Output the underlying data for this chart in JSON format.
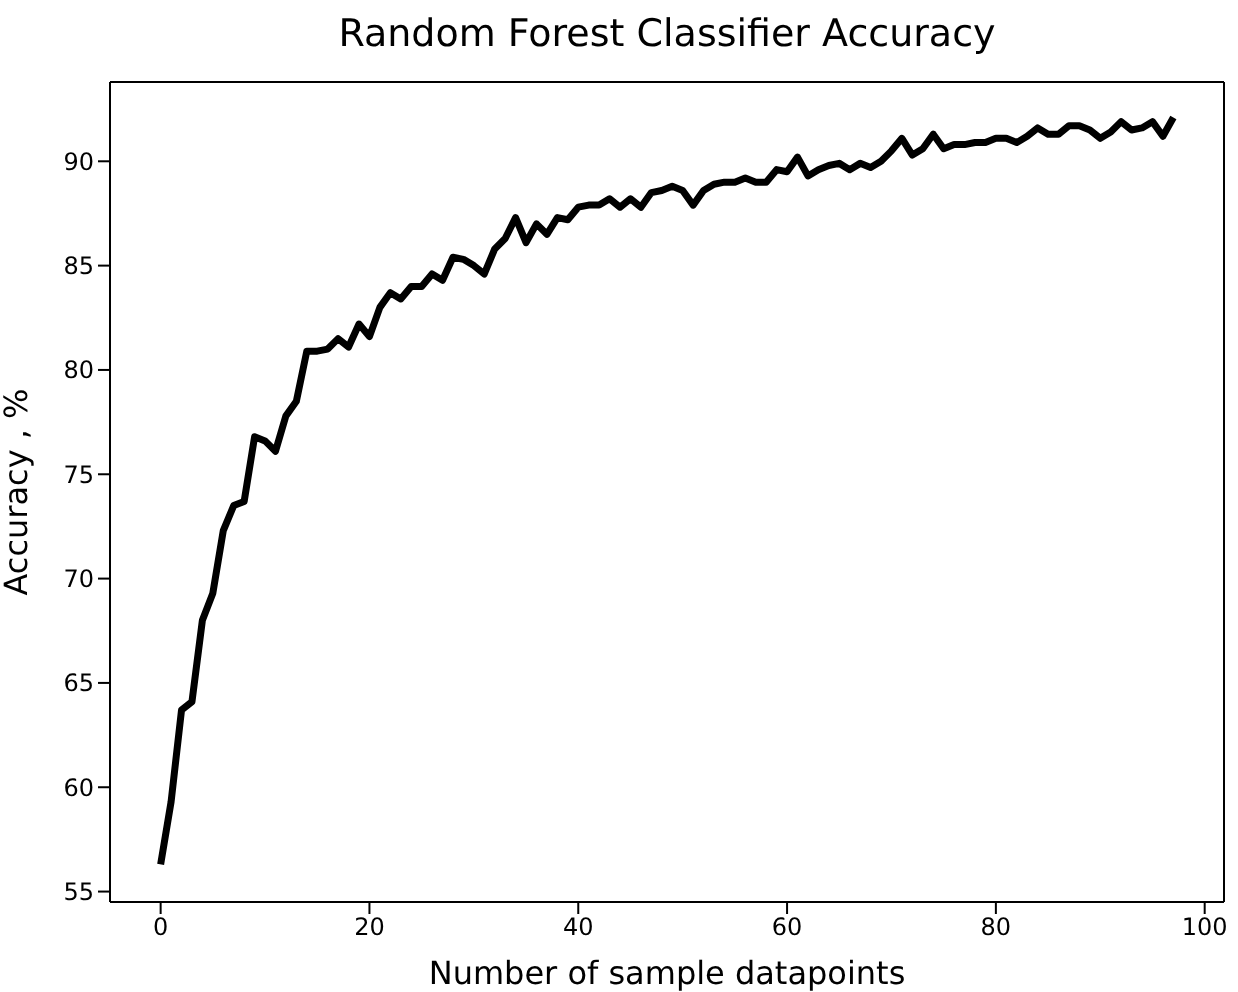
{
  "chart_data": {
    "type": "line",
    "title": "Random Forest Classifier Accuracy",
    "xlabel": "Number of sample datapoints",
    "ylabel": "Accuracy , %",
    "x": [
      0,
      1,
      2,
      3,
      4,
      5,
      6,
      7,
      8,
      9,
      10,
      11,
      12,
      13,
      14,
      15,
      16,
      17,
      18,
      19,
      20,
      21,
      22,
      23,
      24,
      25,
      26,
      27,
      28,
      29,
      30,
      31,
      32,
      33,
      34,
      35,
      36,
      37,
      38,
      39,
      40,
      41,
      42,
      43,
      44,
      45,
      46,
      47,
      48,
      49,
      50,
      51,
      52,
      53,
      54,
      55,
      56,
      57,
      58,
      59,
      60,
      61,
      62,
      63,
      64,
      65,
      66,
      67,
      68,
      69,
      70,
      71,
      72,
      73,
      74,
      75,
      76,
      77,
      78,
      79,
      80,
      81,
      82,
      83,
      84,
      85,
      86,
      87,
      88,
      89,
      90,
      91,
      92,
      93,
      94,
      95,
      96,
      97
    ],
    "series": [
      {
        "color": "#000000",
        "values": [
          56.3,
          59.3,
          63.7,
          64.1,
          68,
          69.3,
          72.3,
          73.5,
          73.7,
          76.8,
          76.6,
          76.1,
          77.8,
          78.5,
          80.9,
          80.9,
          81.0,
          81.5,
          81.1,
          82.2,
          81.6,
          83.0,
          83.7,
          83.4,
          84.0,
          84.0,
          84.6,
          84.3,
          85.4,
          85.3,
          85.0,
          84.6,
          85.8,
          86.3,
          87.3,
          86.1,
          87.0,
          86.5,
          87.3,
          87.2,
          87.8,
          87.9,
          87.9,
          88.2,
          87.8,
          88.2,
          87.8,
          88.5,
          88.6,
          88.8,
          88.6,
          87.9,
          88.6,
          88.9,
          89.0,
          89.0,
          89.2,
          89.0,
          89.0,
          89.6,
          89.5,
          90.2,
          89.3,
          89.6,
          89.8,
          89.9,
          89.6,
          89.9,
          89.7,
          90.0,
          90.5,
          91.1,
          90.3,
          90.6,
          91.3,
          90.6,
          90.8,
          90.8,
          90.9,
          90.9,
          91.1,
          91.1,
          90.9,
          91.2,
          91.6,
          91.3,
          91.3,
          91.7,
          91.7,
          91.5,
          91.1,
          91.4,
          91.9,
          91.5,
          91.6,
          91.9,
          91.2,
          92.1
        ]
      }
    ],
    "xlim": [
      -4.85,
      101.85
    ],
    "xticks": [
      0,
      20,
      40,
      60,
      80,
      100
    ],
    "ylim": [
      54.5,
      93.8
    ],
    "yticks": [
      55,
      60,
      65,
      70,
      75,
      80,
      85,
      90
    ],
    "line_style": "solid",
    "marker": "none",
    "legend": false
  }
}
